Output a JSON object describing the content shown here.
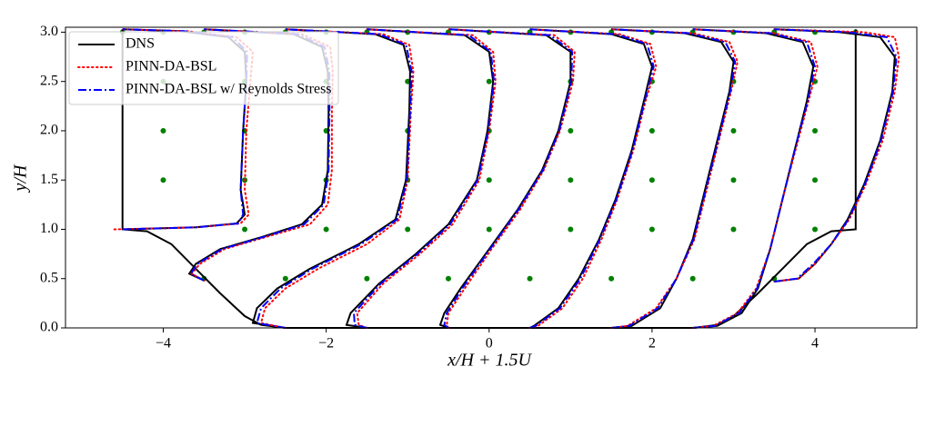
{
  "chart_data": {
    "type": "line",
    "xlabel": "x/H + 1.5U",
    "ylabel": "y/H",
    "xlim": [
      -5.2,
      5.25
    ],
    "ylim": [
      0,
      3.05
    ],
    "xticks": [
      {
        "value": -4,
        "label": "−4"
      },
      {
        "value": -2,
        "label": "−2"
      },
      0,
      2,
      4
    ],
    "yticks": [
      {
        "value": 0,
        "label": "0.0"
      },
      0.5,
      {
        "value": 1,
        "label": "1.0"
      },
      1.5,
      {
        "value": 2,
        "label": "2.0"
      },
      2.5,
      {
        "value": 3,
        "label": "3.0"
      }
    ],
    "legend": "upper left",
    "wall": {
      "color": "#000000",
      "x": [
        -4.5,
        -4.5,
        -4.2,
        -3.9,
        -3.6,
        -3.3,
        -3.0,
        -2.8,
        -2.5,
        2.5,
        2.8,
        3.0,
        3.3,
        3.6,
        3.9,
        4.2,
        4.5,
        4.5
      ],
      "y": [
        3.03,
        1.0,
        0.98,
        0.85,
        0.6,
        0.35,
        0.12,
        0.03,
        0,
        0,
        0.03,
        0.12,
        0.35,
        0.6,
        0.85,
        0.98,
        1.0,
        3.03
      ]
    },
    "points": {
      "color": "#008000",
      "x": [
        -4.5,
        -4,
        -3.5,
        -3,
        -2.5,
        -2,
        -1.5,
        -1,
        -0.5,
        0,
        0.5,
        1,
        1.5,
        2,
        2.5,
        3,
        3.5,
        4,
        4.5,
        -4,
        -3,
        -2,
        -1,
        0,
        1,
        2,
        3,
        4,
        -4,
        -3,
        -2,
        -1,
        0,
        1,
        2,
        3,
        4,
        -4,
        -3,
        -2,
        -1,
        0,
        1,
        2,
        3,
        4,
        -3,
        -2,
        -1,
        0,
        1,
        2,
        3,
        4,
        -3.5,
        -2.5,
        -1.5,
        -0.5,
        0.5,
        1.5,
        2.5,
        3.5
      ],
      "y": [
        3,
        3,
        3,
        3,
        3,
        3,
        3,
        3,
        3,
        3,
        3,
        3,
        3,
        3,
        3,
        3,
        3,
        3,
        3,
        2.5,
        2.5,
        2.5,
        2.5,
        2.5,
        2.5,
        2.5,
        2.5,
        2.5,
        2,
        2,
        2,
        2,
        2,
        2,
        2,
        2,
        2,
        1.5,
        1.5,
        1.5,
        1.5,
        1.5,
        1.5,
        1.5,
        1.5,
        1.5,
        1,
        1,
        1,
        1,
        1,
        1,
        1,
        1,
        0.5,
        0.5,
        0.5,
        0.5,
        0.5,
        0.5,
        0.5,
        0.5
      ]
    },
    "series": [
      {
        "name": "DNS",
        "color": "#000000",
        "style": "solid",
        "x": [
          -4.5,
          -3.6,
          -3.1,
          -3.0,
          -3.05,
          -3.02,
          -2.98,
          -3.0,
          -3.2,
          -3.8,
          -4.5,
          null,
          -3.5,
          -3.68,
          -3.6,
          -3.3,
          -2.8,
          -2.3,
          -2.05,
          -1.98,
          -1.97,
          -1.98,
          -2.05,
          -2.4,
          -3.5,
          null,
          -2.5,
          -2.9,
          -2.85,
          -2.6,
          -2.2,
          -1.6,
          -1.15,
          -1.02,
          -0.98,
          -0.97,
          -1.05,
          -1.4,
          -2.5,
          null,
          -1.5,
          -1.75,
          -1.7,
          -1.35,
          -0.9,
          -0.5,
          -0.15,
          -0.02,
          0.05,
          0.0,
          -0.3,
          -1.5,
          null,
          -0.5,
          -0.6,
          -0.55,
          -0.35,
          0.0,
          0.35,
          0.65,
          0.85,
          1.0,
          1.0,
          0.7,
          -0.5,
          null,
          0.5,
          0.55,
          0.85,
          1.1,
          1.35,
          1.55,
          1.75,
          1.9,
          2.0,
          1.9,
          1.5,
          0.5,
          null,
          1.5,
          1.75,
          2.1,
          2.3,
          2.5,
          2.65,
          2.8,
          2.95,
          3.0,
          2.85,
          2.4,
          1.5,
          null,
          2.5,
          2.8,
          3.1,
          3.3,
          3.45,
          3.6,
          3.75,
          3.9,
          3.98,
          3.85,
          3.4,
          2.5,
          null,
          3.5,
          3.8,
          4.0,
          4.2,
          4.4,
          4.6,
          4.8,
          4.95,
          4.98,
          4.8,
          4.3,
          3.5
        ],
        "y": [
          1.0,
          1.02,
          1.06,
          1.15,
          1.4,
          2.0,
          2.5,
          2.8,
          2.95,
          3.01,
          3.03,
          null,
          0.48,
          0.55,
          0.65,
          0.8,
          0.92,
          1.05,
          1.25,
          1.6,
          2.2,
          2.6,
          2.85,
          2.98,
          3.03,
          null,
          0,
          0.05,
          0.2,
          0.4,
          0.6,
          0.85,
          1.1,
          1.5,
          2.2,
          2.6,
          2.87,
          2.98,
          3.03,
          null,
          0,
          0.03,
          0.15,
          0.45,
          0.75,
          1.05,
          1.5,
          2.0,
          2.5,
          2.8,
          2.97,
          3.03,
          null,
          0,
          0.03,
          0.15,
          0.4,
          0.8,
          1.2,
          1.6,
          2.0,
          2.5,
          2.8,
          2.97,
          3.03,
          null,
          0,
          0.02,
          0.2,
          0.5,
          0.9,
          1.3,
          1.8,
          2.3,
          2.65,
          2.88,
          2.98,
          3.03,
          null,
          0,
          0.02,
          0.2,
          0.5,
          0.9,
          1.4,
          1.9,
          2.4,
          2.7,
          2.9,
          2.99,
          3.03,
          null,
          0,
          0.02,
          0.15,
          0.4,
          0.8,
          1.3,
          1.8,
          2.3,
          2.65,
          2.9,
          2.99,
          3.03,
          null,
          0.47,
          0.5,
          0.65,
          0.85,
          1.1,
          1.45,
          1.9,
          2.4,
          2.75,
          2.95,
          3.0,
          3.03
        ]
      },
      {
        "name": "PINN-DA-BSL",
        "color": "#ff0000",
        "style": "dotted",
        "x": [
          -4.6,
          -3.6,
          -3.05,
          -2.95,
          -3.0,
          -2.98,
          -2.93,
          -2.9,
          -3.1,
          -3.7,
          -4.5,
          null,
          -3.5,
          -3.65,
          -3.55,
          -3.25,
          -2.75,
          -2.2,
          -1.98,
          -1.93,
          -1.93,
          -1.92,
          -1.95,
          -2.3,
          -3.5,
          null,
          -2.5,
          -2.8,
          -2.75,
          -2.5,
          -2.1,
          -1.5,
          -1.1,
          -1.0,
          -0.96,
          -0.93,
          -0.98,
          -1.3,
          -2.5,
          null,
          -1.5,
          -1.6,
          -1.62,
          -1.3,
          -0.85,
          -0.45,
          -0.12,
          0.0,
          0.08,
          0.05,
          -0.2,
          -1.5,
          null,
          -0.5,
          -0.52,
          -0.5,
          -0.3,
          0.03,
          0.38,
          0.67,
          0.87,
          1.03,
          1.05,
          0.8,
          -0.5,
          null,
          0.5,
          0.6,
          0.9,
          1.15,
          1.38,
          1.57,
          1.77,
          1.92,
          2.05,
          1.98,
          1.6,
          0.5,
          null,
          1.5,
          1.7,
          2.05,
          2.3,
          2.52,
          2.67,
          2.82,
          2.97,
          3.05,
          2.95,
          2.5,
          1.5,
          null,
          2.5,
          2.75,
          3.05,
          3.28,
          3.45,
          3.6,
          3.76,
          3.92,
          4.03,
          3.95,
          3.5,
          2.5,
          null,
          3.5,
          3.8,
          4.0,
          4.2,
          4.42,
          4.62,
          4.83,
          4.98,
          5.03,
          4.98,
          4.6,
          3.5
        ],
        "y": [
          1.0,
          1.02,
          1.06,
          1.15,
          1.4,
          2.0,
          2.5,
          2.8,
          2.95,
          3.01,
          3.03,
          null,
          0.48,
          0.55,
          0.65,
          0.8,
          0.92,
          1.05,
          1.25,
          1.6,
          2.2,
          2.6,
          2.85,
          2.98,
          3.03,
          null,
          0,
          0.05,
          0.2,
          0.4,
          0.6,
          0.85,
          1.1,
          1.5,
          2.2,
          2.6,
          2.87,
          2.98,
          3.03,
          null,
          0,
          0.03,
          0.15,
          0.45,
          0.75,
          1.05,
          1.5,
          2.0,
          2.5,
          2.8,
          2.97,
          3.03,
          null,
          0,
          0.03,
          0.15,
          0.4,
          0.8,
          1.2,
          1.6,
          2.0,
          2.5,
          2.8,
          2.97,
          3.03,
          null,
          0,
          0.02,
          0.2,
          0.5,
          0.9,
          1.3,
          1.8,
          2.3,
          2.65,
          2.88,
          2.98,
          3.03,
          null,
          0,
          0.02,
          0.2,
          0.5,
          0.9,
          1.4,
          1.9,
          2.4,
          2.7,
          2.9,
          2.99,
          3.03,
          null,
          0,
          0.02,
          0.15,
          0.4,
          0.8,
          1.3,
          1.8,
          2.3,
          2.65,
          2.9,
          2.99,
          3.03,
          null,
          0.47,
          0.5,
          0.65,
          0.85,
          1.1,
          1.45,
          1.9,
          2.4,
          2.75,
          2.95,
          3.0,
          3.03
        ]
      },
      {
        "name": "PINN-DA-BSL w/ Reynolds Stress",
        "color": "#0000ff",
        "style": "dashdot",
        "x": [
          -4.5,
          -3.6,
          -3.08,
          -3.02,
          -3.05,
          -3.02,
          -2.98,
          -2.97,
          -3.15,
          -3.75,
          -4.5,
          null,
          -3.5,
          -3.66,
          -3.58,
          -3.28,
          -2.78,
          -2.27,
          -2.03,
          -1.97,
          -1.96,
          -1.96,
          -2.02,
          -2.35,
          -3.5,
          null,
          -2.5,
          -2.85,
          -2.8,
          -2.56,
          -2.17,
          -1.57,
          -1.13,
          -1.01,
          -0.97,
          -0.95,
          -1.02,
          -1.35,
          -2.5,
          null,
          -1.5,
          -1.65,
          -1.66,
          -1.33,
          -0.88,
          -0.48,
          -0.14,
          -0.01,
          0.06,
          0.02,
          -0.25,
          -1.5,
          null,
          -0.5,
          -0.55,
          -0.52,
          -0.33,
          0.01,
          0.36,
          0.66,
          0.86,
          1.01,
          1.02,
          0.75,
          -0.5,
          null,
          0.5,
          0.57,
          0.87,
          1.12,
          1.36,
          1.56,
          1.76,
          1.91,
          2.02,
          1.94,
          1.55,
          0.5,
          null,
          1.5,
          1.72,
          2.07,
          2.3,
          2.51,
          2.66,
          2.81,
          2.96,
          3.02,
          2.9,
          2.45,
          1.5,
          null,
          2.5,
          2.77,
          3.07,
          3.29,
          3.45,
          3.6,
          3.75,
          3.91,
          4.0,
          3.9,
          3.45,
          2.5,
          null,
          3.5,
          3.78,
          3.98,
          4.2,
          4.41,
          4.61,
          4.81,
          4.96,
          5.0,
          4.88,
          4.4,
          3.5
        ],
        "y": [
          1.0,
          1.02,
          1.06,
          1.15,
          1.4,
          2.0,
          2.5,
          2.8,
          2.95,
          3.01,
          3.03,
          null,
          0.48,
          0.55,
          0.65,
          0.8,
          0.92,
          1.05,
          1.25,
          1.6,
          2.2,
          2.6,
          2.85,
          2.98,
          3.03,
          null,
          0,
          0.05,
          0.2,
          0.4,
          0.6,
          0.85,
          1.1,
          1.5,
          2.2,
          2.6,
          2.87,
          2.98,
          3.03,
          null,
          0,
          0.03,
          0.15,
          0.45,
          0.75,
          1.05,
          1.5,
          2.0,
          2.5,
          2.8,
          2.97,
          3.03,
          null,
          0,
          0.03,
          0.15,
          0.4,
          0.8,
          1.2,
          1.6,
          2.0,
          2.5,
          2.8,
          2.97,
          3.03,
          null,
          0,
          0.02,
          0.2,
          0.5,
          0.9,
          1.3,
          1.8,
          2.3,
          2.65,
          2.88,
          2.98,
          3.03,
          null,
          0,
          0.02,
          0.2,
          0.5,
          0.9,
          1.4,
          1.9,
          2.4,
          2.7,
          2.9,
          2.99,
          3.03,
          null,
          0,
          0.02,
          0.15,
          0.4,
          0.8,
          1.3,
          1.8,
          2.3,
          2.65,
          2.9,
          2.99,
          3.03,
          null,
          0.47,
          0.5,
          0.65,
          0.85,
          1.1,
          1.45,
          1.9,
          2.4,
          2.75,
          2.95,
          3.0,
          3.03
        ]
      }
    ]
  }
}
